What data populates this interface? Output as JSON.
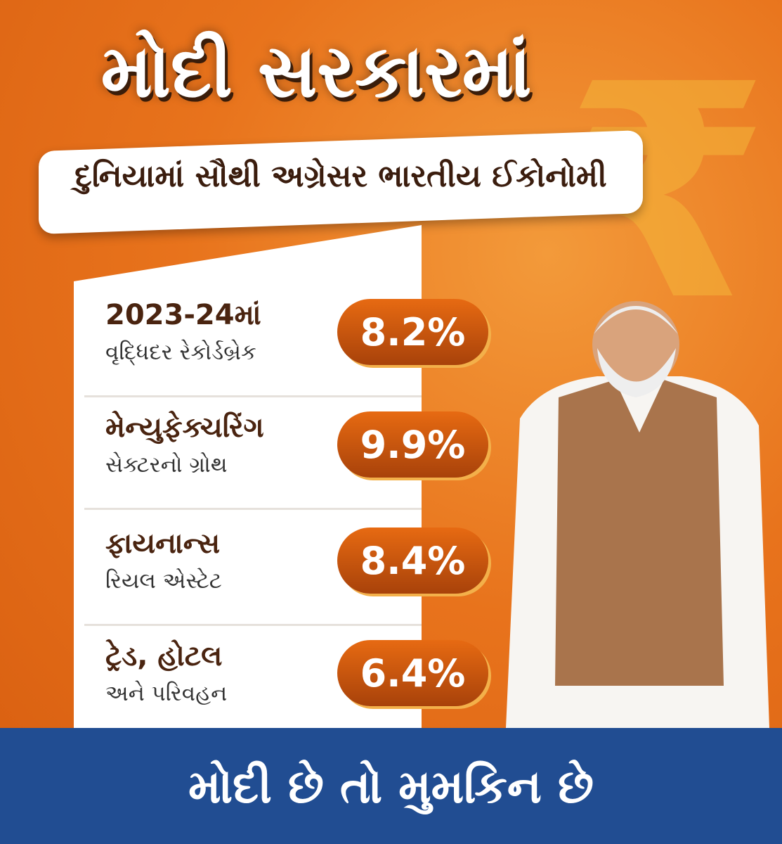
{
  "header": {
    "title": "મોદી સરકારમાં",
    "subtitle": "દુનિયામાં સૌથી અગ્રેસર ભારતીય ઈકોનોમી"
  },
  "items": [
    {
      "title": "2023-24માં",
      "subtitle": "વૃદ્ધિદર રેકોર્ડબ્રેક",
      "value": "8.2%"
    },
    {
      "title": "મેન્યુફેક્ચરિંગ",
      "subtitle": "સેક્ટરનો ગ્રોથ",
      "value": "9.9%"
    },
    {
      "title": "ફાયનાન્સ",
      "subtitle": "રિયલ એસ્ટેટ",
      "value": "8.4%"
    },
    {
      "title": "ટ્રેડ, હોટલ",
      "subtitle": "અને પરિવહન",
      "value": "6.4%"
    }
  ],
  "footer": {
    "slogan": "મોદી છે તો મુમકિન છે"
  }
}
